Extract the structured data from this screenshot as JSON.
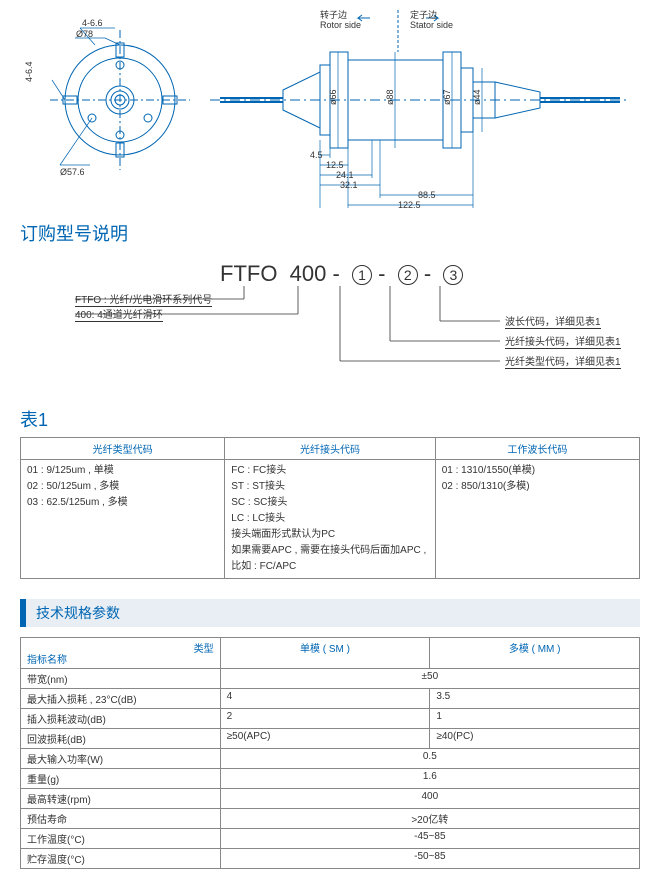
{
  "drawing": {
    "rotor_side_cn": "转子边",
    "stator_side_cn": "定子边",
    "rotor_side_en": "Rotor side",
    "stator_side_en": "Stator side",
    "dims": {
      "slot": "4-6.6",
      "d78": "Ø78",
      "slot2": "4-6.4",
      "d57_6": "Ø57.6",
      "d66": "ø66",
      "d88": "ø88",
      "d67": "ø67",
      "d44": "ø44",
      "l4_5": "4.5",
      "l12_5": "12.5",
      "l24_1": "24.1",
      "l32_1": "32.1",
      "l88_5": "88.5",
      "l122_5": "122.5"
    }
  },
  "ordering_title": "订购型号说明",
  "ordering": {
    "prefix": "FTFO",
    "num": "400",
    "ftfo_desc": "FTFO : 光纤/光电滑环系列代号",
    "num_desc": "400: 4通道光纤滑环",
    "p1_desc": "波长代码，详细见表1",
    "p2_desc": "光纤接头代码，详细见表1",
    "p3_desc": "光纤类型代码，详细见表1"
  },
  "table1_title": "表1",
  "table1": {
    "headers": [
      "光纤类型代码",
      "光纤接头代码",
      "工作波长代码"
    ],
    "col1": [
      "01 : 9/125um , 单模",
      "02 : 50/125um , 多模",
      "03 : 62.5/125um , 多模"
    ],
    "col2": [
      "FC : FC接头",
      "ST : ST接头",
      "SC : SC接头",
      "LC : LC接头",
      "接头端面形式默认为PC",
      "如果需要APC , 需要在接头代码后面加APC ,",
      "比如 : FC/APC"
    ],
    "col3": [
      "01 : 1310/1550(单模)",
      "02 : 850/1310(多模)"
    ]
  },
  "spec_title": "技术规格参数",
  "spec": {
    "corner": "类型",
    "rowhead": "指标名称",
    "colhead": [
      "单模 ( SM )",
      "多模 ( MM )"
    ],
    "rows": [
      {
        "name": "带宽(nm)",
        "span": "±50"
      },
      {
        "name": "最大插入损耗 , 23°C(dB)",
        "sm": "4",
        "mm": "3.5"
      },
      {
        "name": "插入损耗波动(dB)",
        "sm": "2",
        "mm": "1"
      },
      {
        "name": "回波损耗(dB)",
        "sm": "≥50(APC)",
        "mm": "≥40(PC)"
      },
      {
        "name": "最大输入功率(W)",
        "span": "0.5"
      },
      {
        "name": "重量(g)",
        "span": "1.6"
      },
      {
        "name": "最高转速(rpm)",
        "span": "400"
      },
      {
        "name": "预估寿命",
        "span": ">20亿转"
      },
      {
        "name": "工作温度(°C)",
        "span": "-45~85"
      },
      {
        "name": "贮存温度(°C)",
        "span": "-50~85"
      }
    ]
  }
}
